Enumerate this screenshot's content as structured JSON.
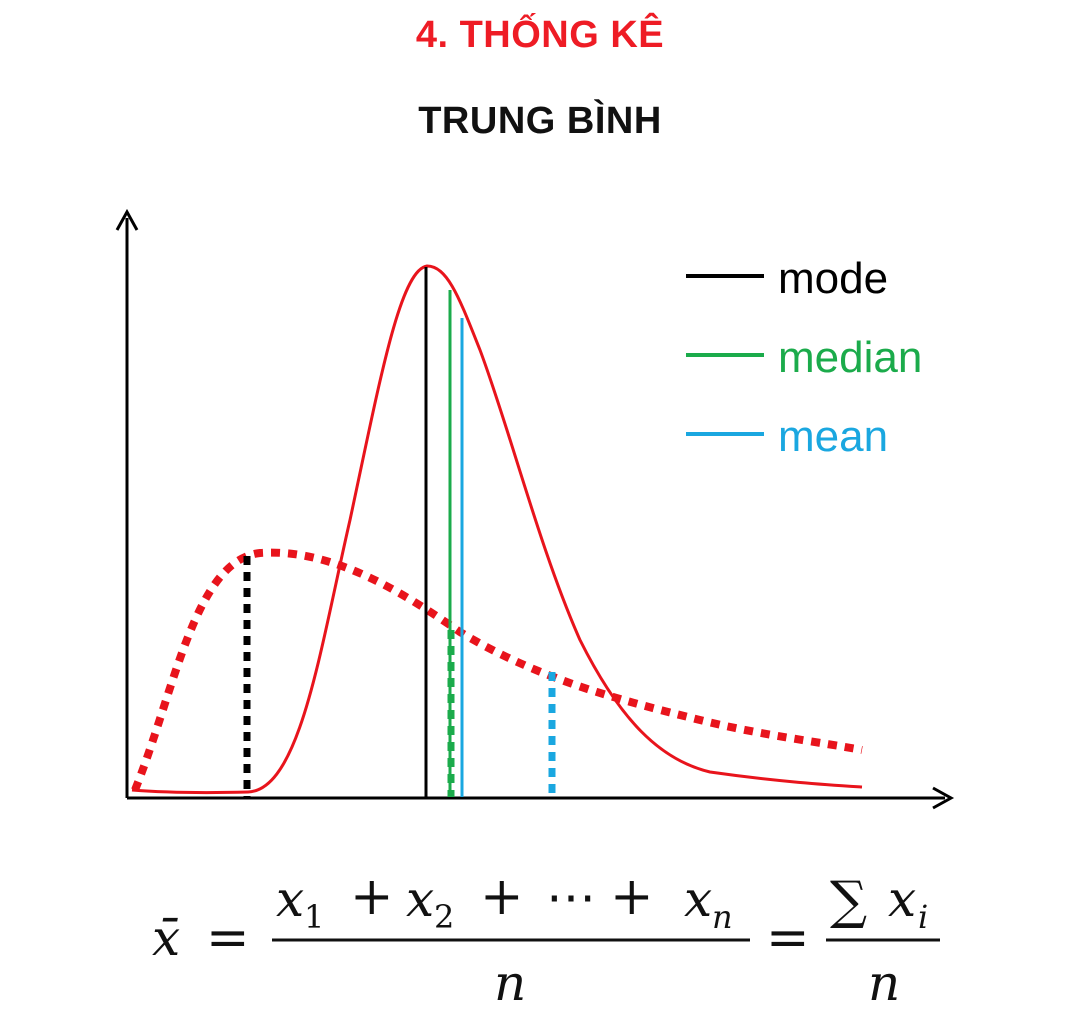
{
  "heading": "4. THỐNG KÊ",
  "subheading": "TRUNG BÌNH",
  "colors": {
    "heading": "#ee1c25",
    "subheading": "#111111",
    "curve": "#e8141c",
    "mode": "#000000",
    "median": "#1bab4b",
    "mean": "#1aa7e0",
    "axis": "#000000"
  },
  "legend": [
    {
      "label": "mode",
      "color": "#000000"
    },
    {
      "label": "median",
      "color": "#1bab4b"
    },
    {
      "label": "mean",
      "color": "#1aa7e0"
    }
  ],
  "formula": {
    "xbar": "x̄",
    "equals": "=",
    "numerator": {
      "t1": "x",
      "s1": "1",
      "plus": "+",
      "t2": "x",
      "s2": "2",
      "dots": "⋯",
      "tn": "x",
      "sn": "n"
    },
    "denominator": "n",
    "sum_symbol": "∑",
    "sum_term": "x",
    "sum_sub": "i",
    "sum_denominator": "n"
  }
}
